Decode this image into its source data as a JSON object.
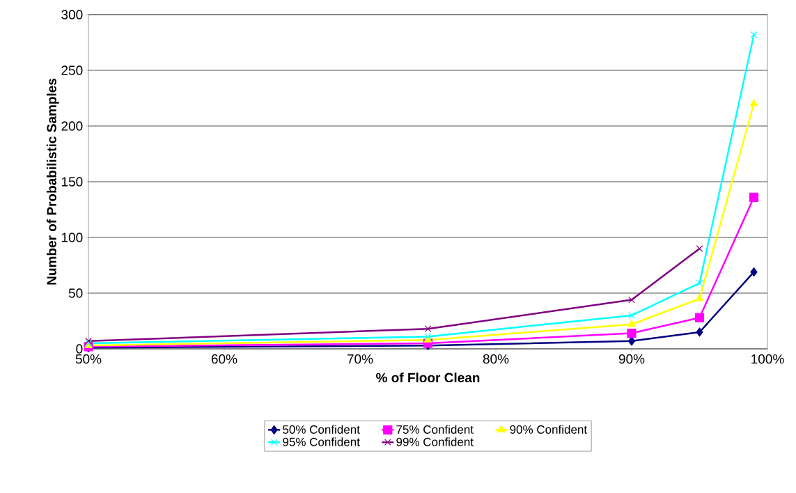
{
  "chart_data": {
    "type": "line",
    "xlabel": "% of Floor Clean",
    "ylabel": "Number of Probabilistic Samples",
    "x": [
      50,
      75,
      90,
      95,
      99
    ],
    "series": [
      {
        "name": "50% Confident",
        "color": "#000080",
        "marker": "diamond",
        "values": [
          1,
          3,
          7,
          15,
          69
        ]
      },
      {
        "name": "75% Confident",
        "color": "#ff00ff",
        "marker": "square",
        "values": [
          2,
          5,
          14,
          28,
          136
        ]
      },
      {
        "name": "90% Confident",
        "color": "#ffff00",
        "marker": "triangle",
        "values": [
          3,
          8,
          22,
          45,
          220
        ]
      },
      {
        "name": "95% Confident",
        "color": "#00ffff",
        "marker": "cross",
        "values": [
          5,
          11,
          30,
          59,
          282
        ]
      },
      {
        "name": "99% Confident",
        "color": "#800080",
        "marker": "cross",
        "values": [
          7,
          18,
          44,
          90,
          null
        ]
      }
    ],
    "xlim": [
      50,
      100
    ],
    "ylim": [
      0,
      300
    ],
    "xticks": [
      {
        "value": 50,
        "label": "50%"
      },
      {
        "value": 60,
        "label": "60%"
      },
      {
        "value": 70,
        "label": "70%"
      },
      {
        "value": 80,
        "label": "80%"
      },
      {
        "value": 90,
        "label": "90%"
      },
      {
        "value": 100,
        "label": "100%"
      }
    ],
    "yticks": [
      0,
      50,
      100,
      150,
      200,
      250,
      300
    ],
    "grid": "y",
    "legend": "bottom"
  }
}
